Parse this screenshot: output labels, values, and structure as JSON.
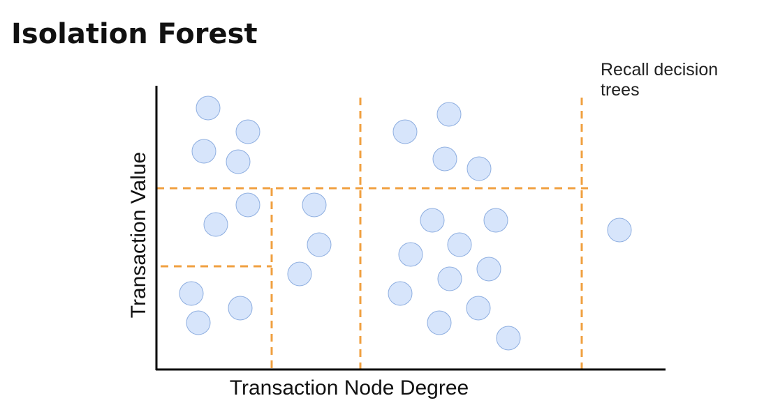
{
  "title": "Isolation Forest",
  "note": "Recall decision trees",
  "x_axis_label": "Transaction Node Degree",
  "y_axis_label": "Transaction Value"
}
